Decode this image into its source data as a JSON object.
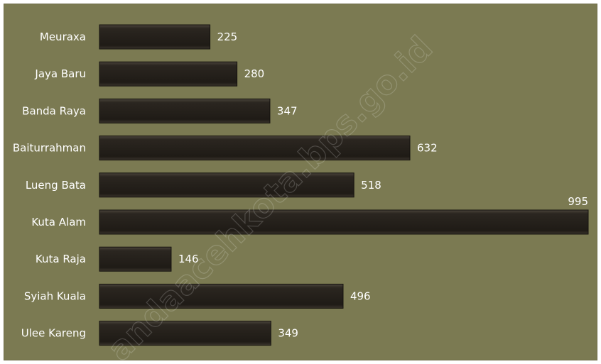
{
  "chart_data": {
    "type": "bar",
    "orientation": "horizontal",
    "categories": [
      "Meuraxa",
      "Jaya Baru",
      "Banda Raya",
      "Baiturrahman",
      "Lueng Bata",
      "Kuta Alam",
      "Kuta Raja",
      "Syiah Kuala",
      "Ulee Kareng"
    ],
    "values": [
      225,
      280,
      347,
      632,
      518,
      995,
      146,
      496,
      349
    ],
    "title": "",
    "xlabel": "",
    "ylabel": "",
    "xlim": [
      0,
      995
    ],
    "grid": false,
    "legend": "none",
    "colors": {
      "background": "#7b7a52",
      "bar": "#231f1a",
      "bar_highlight": "#4a443b",
      "text": "#ffffff"
    }
  },
  "watermark": "andaacehkota.bps.go.id"
}
